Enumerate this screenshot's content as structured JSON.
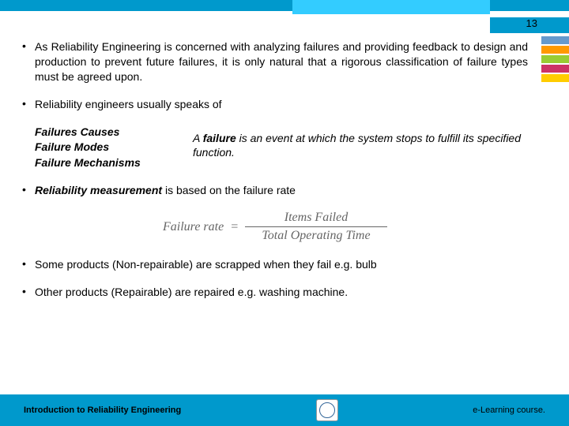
{
  "page_number": "13",
  "colors": {
    "header_blue": "#0099cc",
    "header_cyan": "#33ccff",
    "stripe1": "#6699cc",
    "stripe2": "#ff9900",
    "stripe3": "#99cc33",
    "stripe4": "#cc3366",
    "stripe5": "#ffcc00"
  },
  "bullets": {
    "b1": "As Reliability Engineering is concerned with analyzing failures and providing feedback to design and production to prevent future failures, it is only natural that a rigorous classification of failure types must be agreed upon.",
    "b2": "Reliability engineers usually speaks of",
    "b3_prefix": "Reliability measurement",
    "b3_rest": " is based on the failure rate",
    "b4": "Some products (Non-repairable) are scrapped when they fail e.g. bulb",
    "b5": "Other products (Repairable) are repaired e.g. washing machine."
  },
  "terms": {
    "t1": "Failures Causes",
    "t2": "Failure Modes",
    "t3": "Failure Mechanisms"
  },
  "definition": {
    "pre": "A ",
    "bold": "failure",
    "post": " is an event at which the system stops to fulfill its specified function."
  },
  "formula": {
    "lhs": "Failure rate",
    "eq": "=",
    "num": "Items Failed",
    "den": "Total Operating Time"
  },
  "footer": {
    "left": "Introduction to Reliability Engineering",
    "right": "e-Learning course."
  }
}
